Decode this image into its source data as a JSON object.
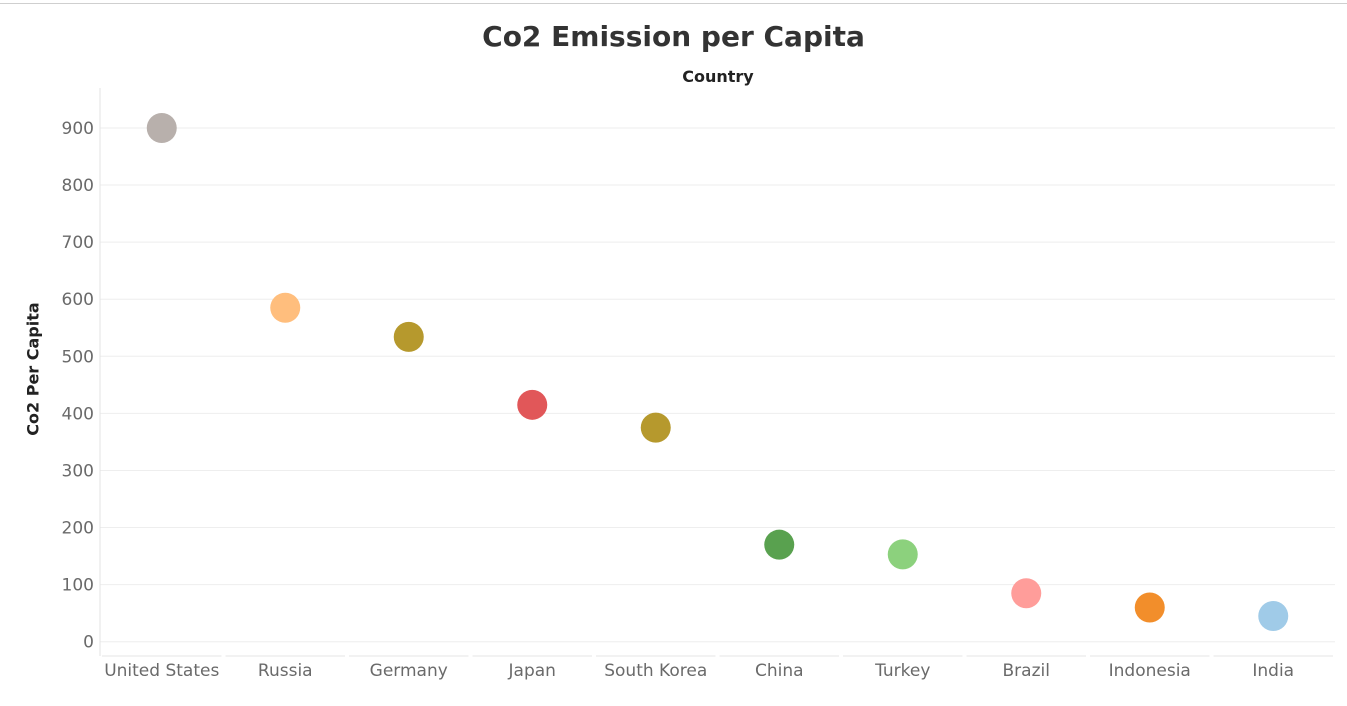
{
  "page": {
    "title": "Co2 Emission per Capita",
    "column_header": "Country"
  },
  "chart_data": {
    "type": "scatter",
    "title": "Co2 Emission per Capita",
    "xlabel": "Country",
    "ylabel": "Co2 Per Capita",
    "ylim": [
      -25,
      970
    ],
    "yticks": [
      0,
      100,
      200,
      300,
      400,
      500,
      600,
      700,
      800,
      900
    ],
    "grid": true,
    "legend": "none",
    "categories": [
      "United States",
      "Russia",
      "Germany",
      "Japan",
      "South Korea",
      "China",
      "Turkey",
      "Brazil",
      "Indonesia",
      "India"
    ],
    "values": [
      900,
      585,
      534,
      415,
      375,
      170,
      153,
      85,
      60,
      45
    ],
    "colors": [
      "#b8b0ac",
      "#ffbe7d",
      "#b6992d",
      "#e15759",
      "#b6992d",
      "#59a14f",
      "#8cd17d",
      "#ff9d9a",
      "#f28e2b",
      "#a0cbe8"
    ]
  }
}
